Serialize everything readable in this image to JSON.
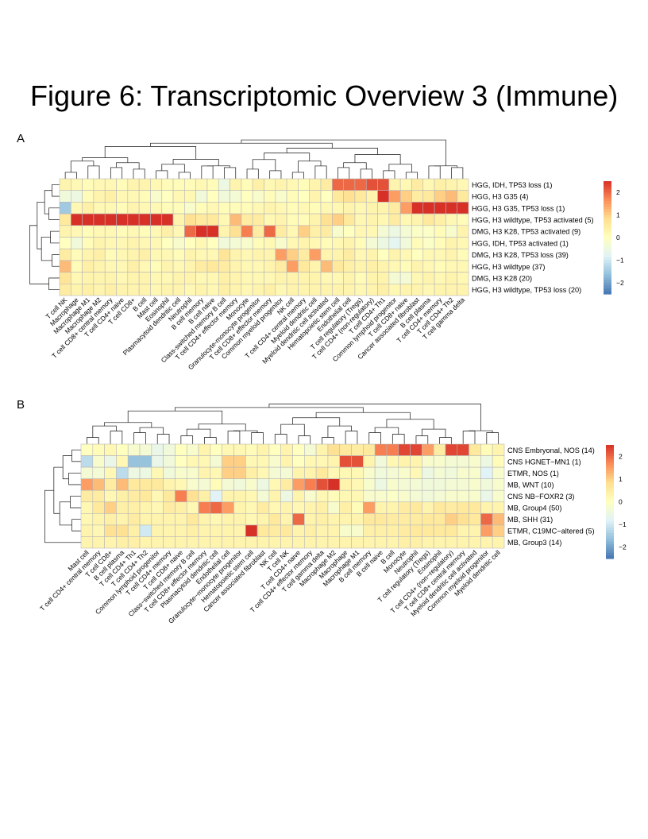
{
  "page": {
    "title": "Figure 6: Transcriptomic Overview 3 (Immune)"
  },
  "legend_colors": [
    "#4575b4",
    "#91bfdb",
    "#e0f3f8",
    "#ffffbf",
    "#fee090",
    "#fc8d59",
    "#d73027"
  ],
  "chart_data": [
    {
      "type": "heatmap",
      "panel": "A",
      "rows": [
        "HGG, IDH, TP53 loss (1)",
        "HGG, H3 G35 (4)",
        "HGG, H3 G35, TP53 loss (1)",
        "HGG, H3 wildtype, TP53 activated (5)",
        "DMG, H3 K28, TP53 activated (9)",
        "HGG, IDH, TP53 activated (1)",
        "DMG, H3 K28, TP53 loss (39)",
        "HGG, H3 wildtype (37)",
        "DMG, H3 K28 (20)",
        "HGG, H3 wildtype, TP53 loss (20)"
      ],
      "columns": [
        "T cell NK",
        "Macrophage",
        "Macrophage M1",
        "Macrophage M2",
        "T cell CD8+ central memory",
        "T cell CD4+ naive",
        "T cell CD8+",
        "B cell",
        "Mast cell",
        "Eosinophil",
        "Plasmacytoid dendritic cell",
        "Neutrophil",
        "B cell memory",
        "B cell naive",
        "Class-switched memory B cell",
        "T cell CD4+ effector memory",
        "Monocyte",
        "Granulocyte-monocyte progenitor",
        "T cell CD8+ effector memory",
        "Common myeloid progenitor",
        "NK cell",
        "T cell CD4+ central memory",
        "Myeloid dendritic cell",
        "Myeloid dendritic cell activated",
        "Hematopoietic stem cell",
        "Endothelial cell",
        "T cell regulatory (Tregs)",
        "T cell CD4+ (non-regulatory)",
        "T cell CD4+ Th1",
        "Common lymphoid progenitor",
        "T cell CD8+ naive",
        "Cancer associated fibroblast",
        "B cell plasma",
        "T cell CD4+ memory",
        "T cell CD4+ Th2",
        "T cell gamma delta"
      ],
      "values": [
        [
          0.3,
          0.2,
          0.1,
          0.2,
          0.2,
          0.1,
          0.3,
          0.3,
          0.2,
          0.1,
          0.1,
          0.1,
          0.2,
          0.1,
          -0.5,
          0.3,
          0.1,
          0.4,
          0.2,
          0.3,
          0.2,
          0.1,
          0.3,
          0.5,
          2.0,
          2.0,
          2.0,
          2.2,
          2.2,
          0.3,
          0.2,
          0.5,
          0.2,
          0.4,
          0.3,
          0.2
        ],
        [
          -0.4,
          -0.5,
          0.1,
          0.3,
          0.4,
          0.2,
          0.2,
          0.1,
          -0.2,
          0.0,
          0.2,
          0.2,
          -0.4,
          0.0,
          -0.4,
          -0.3,
          0.0,
          -0.2,
          0.1,
          -0.2,
          0.1,
          0.0,
          0.3,
          0.0,
          0.6,
          0.8,
          0.6,
          0.3,
          2.5,
          1.5,
          1.0,
          0.5,
          0.6,
          1.0,
          1.2,
          0.6
        ],
        [
          -1.5,
          0.2,
          0.4,
          0.2,
          0.2,
          0.1,
          0.3,
          0.2,
          0.2,
          0.1,
          0.1,
          -0.2,
          0.1,
          0.2,
          0.1,
          0.1,
          0.1,
          0.2,
          0.3,
          0.2,
          0.1,
          0.2,
          0.1,
          0.2,
          0.2,
          0.3,
          0.2,
          0.3,
          0.3,
          0.5,
          1.5,
          2.5,
          2.5,
          2.5,
          2.5,
          2.5
        ],
        [
          0.6,
          2.5,
          2.5,
          2.5,
          2.5,
          2.5,
          2.5,
          2.5,
          2.5,
          2.5,
          0.3,
          0.8,
          0.6,
          0.6,
          0.2,
          1.2,
          0.5,
          0.5,
          0.2,
          0.3,
          0.1,
          0.1,
          0.3,
          0.8,
          1.0,
          0.6,
          0.2,
          0.3,
          0.2,
          0.5,
          0.2,
          0.3,
          0.6,
          0.4,
          0.2,
          0.1
        ],
        [
          0.3,
          0.2,
          0.1,
          0.2,
          0.2,
          0.1,
          0.2,
          0.1,
          0.2,
          0.4,
          0.2,
          2.0,
          2.5,
          2.5,
          0.3,
          0.8,
          1.8,
          0.5,
          2.0,
          0.5,
          0.2,
          1.0,
          0.4,
          0.5,
          -0.2,
          0.0,
          0.2,
          0.2,
          -0.3,
          -0.5,
          -0.3,
          -0.1,
          -0.1,
          0.1,
          -0.2,
          0.3
        ],
        [
          0.0,
          -0.4,
          0.1,
          0.3,
          0.2,
          0.2,
          0.3,
          0.2,
          0.2,
          0.0,
          -0.2,
          0.0,
          0.2,
          0.0,
          -0.4,
          -0.3,
          -0.2,
          0.1,
          0.2,
          -0.2,
          0.2,
          0.3,
          0.2,
          0.1,
          0.2,
          0.3,
          0.1,
          -0.3,
          -0.5,
          -0.7,
          -0.4,
          0.1,
          -0.1,
          0.1,
          0.3,
          0.2
        ],
        [
          0.5,
          0.1,
          0.3,
          0.4,
          0.1,
          0.2,
          0.3,
          0.4,
          0.2,
          0.2,
          0.1,
          0.3,
          0.2,
          0.2,
          0.7,
          0.3,
          0.2,
          0.3,
          0.3,
          1.5,
          1.0,
          0.5,
          1.5,
          0.3,
          0.3,
          0.5,
          0.2,
          0.3,
          0.0,
          0.3,
          0.2,
          0.0,
          0.2,
          0.2,
          0.3,
          0.1
        ],
        [
          1.2,
          0.1,
          0.4,
          0.3,
          0.2,
          0.2,
          0.4,
          0.2,
          0.1,
          0.3,
          0.2,
          0.3,
          0.5,
          0.6,
          0.5,
          0.3,
          0.2,
          0.2,
          0.3,
          0.5,
          1.5,
          0.6,
          0.3,
          1.2,
          0.6,
          0.4,
          0.3,
          0.4,
          0.3,
          0.2,
          0.1,
          0.3,
          0.2,
          0.1,
          0.2,
          0.2
        ],
        [
          0.7,
          0.2,
          0.3,
          0.3,
          0.3,
          0.2,
          0.3,
          0.3,
          0.2,
          0.2,
          0.3,
          0.3,
          0.2,
          0.2,
          0.4,
          0.3,
          0.2,
          0.2,
          0.2,
          0.3,
          0.3,
          0.3,
          0.3,
          0.2,
          0.2,
          0.3,
          0.1,
          0.3,
          0.3,
          -0.3,
          -0.3,
          0.2,
          0.3,
          0.2,
          0.3,
          0.2
        ],
        [
          0.5,
          0.3,
          0.4,
          0.3,
          0.4,
          0.3,
          0.3,
          0.3,
          0.2,
          0.3,
          0.3,
          0.2,
          0.3,
          0.2,
          0.4,
          0.3,
          0.2,
          0.3,
          0.4,
          0.2,
          0.3,
          0.3,
          0.3,
          0.3,
          0.3,
          0.3,
          0.2,
          0.3,
          0.4,
          0.2,
          0.3,
          0.3,
          0.2,
          0.3,
          0.3,
          0.3
        ]
      ],
      "legend_ticks": [
        "2",
        "1",
        "0",
        "−1",
        "−2"
      ],
      "color_range": [
        -2.5,
        2.5
      ]
    },
    {
      "type": "heatmap",
      "panel": "B",
      "rows": [
        "CNS Embryonal, NOS (14)",
        "CNS HGNET−MN1 (1)",
        "ETMR, NOS (1)",
        "MB, WNT (10)",
        "CNS NB−FOXR2 (3)",
        "MB, Group4 (50)",
        "MB, SHH (31)",
        "ETMR, C19MC−altered (5)",
        "MB, Group3 (14)"
      ],
      "columns": [
        "Mast cell",
        "T cell CD4+ central memory",
        "T cell CD8+",
        "B cell plasma",
        "T cell CD4+ Th1",
        "T cell CD4+ Th2",
        "Common lymphoid progenitor",
        "T cell CD4+ memory",
        "T cell CD8+ naive",
        "Class−switched memory B cell",
        "T cell CD8+ effector memory",
        "Plasmacytoid dendritic cell",
        "Endothelial cell",
        "Granulocyte−monocyte progenitor",
        "Hematopoietic stem cell",
        "Cancer associated fibroblast",
        "NK cell",
        "T cell NK",
        "T cell CD4+ naive",
        "T cell CD4+ effector memory",
        "T cell gamma delta",
        "Macrophage M2",
        "Macrophage",
        "Macrophage M1",
        "B cell memory",
        "B cell naive",
        "B cell",
        "Monocyte",
        "Neutrophil",
        "T cell regulatory (Tregs)",
        "Eosinophil",
        "T cell CD4+ (non−regulatory)",
        "T cell CD8+ central memory",
        "Myeloid dendritic cell activated",
        "Common myeloid progenitor",
        "Myeloid dendritic cell"
      ],
      "values": [
        [
          0.0,
          0.1,
          0.2,
          0.0,
          -0.2,
          -0.3,
          -0.6,
          -0.4,
          0.0,
          -0.2,
          0.3,
          0.0,
          0.2,
          0.2,
          0.1,
          0.3,
          0.0,
          0.3,
          0.0,
          -0.3,
          0.3,
          0.8,
          0.6,
          0.5,
          0.6,
          1.8,
          1.8,
          2.3,
          2.3,
          1.5,
          0.5,
          2.3,
          2.3,
          0.6,
          0.1,
          0.3
        ],
        [
          -1.2,
          -0.2,
          -0.6,
          0.2,
          -1.6,
          -1.6,
          -0.6,
          -0.4,
          0.0,
          0.2,
          0.2,
          -0.3,
          1.0,
          1.0,
          0.2,
          0.2,
          -0.2,
          0.3,
          0.0,
          0.2,
          0.2,
          0.3,
          2.2,
          2.2,
          0.3,
          -0.4,
          0.2,
          0.3,
          0.3,
          -0.2,
          -0.2,
          -0.3,
          -0.3,
          -0.2,
          -0.5,
          0.1
        ],
        [
          -0.3,
          -0.3,
          0.2,
          -1.2,
          -0.5,
          -0.5,
          0.2,
          -0.4,
          -0.2,
          -0.2,
          0.3,
          0.2,
          1.0,
          1.0,
          0.4,
          0.2,
          -0.3,
          -0.3,
          0.3,
          0.3,
          0.6,
          0.2,
          0.2,
          0.2,
          -0.2,
          -0.4,
          -0.3,
          -0.2,
          0.2,
          -0.5,
          -0.3,
          -0.4,
          -0.2,
          -0.2,
          -0.8,
          -0.2
        ],
        [
          1.5,
          1.2,
          0.5,
          1.2,
          0.6,
          0.6,
          0.6,
          0.3,
          0.2,
          -0.2,
          -0.3,
          0.1,
          -0.3,
          -0.4,
          -0.2,
          -0.5,
          0.2,
          0.5,
          1.5,
          1.8,
          2.2,
          2.5,
          0.3,
          0.2,
          -0.2,
          -0.5,
          -0.2,
          -0.3,
          -0.3,
          -0.4,
          -0.4,
          -0.3,
          -0.3,
          -0.2,
          -0.4,
          -0.2
        ],
        [
          0.5,
          0.5,
          0.2,
          0.4,
          0.5,
          0.6,
          0.2,
          0.6,
          1.8,
          0.8,
          0.4,
          -0.8,
          0.3,
          0.3,
          0.2,
          -0.3,
          0.3,
          -0.5,
          0.3,
          -0.2,
          0.2,
          0.1,
          0.2,
          0.2,
          -0.2,
          -0.2,
          -0.1,
          -0.2,
          -0.3,
          -0.4,
          -0.3,
          -0.2,
          -0.2,
          -0.2,
          -0.6,
          -0.2
        ],
        [
          0.2,
          0.6,
          1.0,
          0.4,
          0.4,
          0.3,
          0.2,
          0.5,
          0.4,
          0.2,
          1.8,
          2.0,
          1.5,
          0.3,
          0.2,
          0.5,
          0.2,
          0.3,
          0.2,
          0.3,
          0.4,
          -0.2,
          0.4,
          0.1,
          1.5,
          0.3,
          0.3,
          0.5,
          0.6,
          0.3,
          0.6,
          0.5,
          0.6,
          0.6,
          0.3,
          0.3
        ],
        [
          0.2,
          0.3,
          0.4,
          0.3,
          0.5,
          0.3,
          0.3,
          0.3,
          0.3,
          0.6,
          0.3,
          0.2,
          0.3,
          0.3,
          0.2,
          0.3,
          0.6,
          0.3,
          2.0,
          0.3,
          0.4,
          0.3,
          0.3,
          0.3,
          0.6,
          0.6,
          0.5,
          0.5,
          0.5,
          0.6,
          0.6,
          1.0,
          0.8,
          0.6,
          2.0,
          1.2
        ],
        [
          0.3,
          0.2,
          0.8,
          0.8,
          0.4,
          -1.0,
          0.3,
          0.3,
          0.3,
          0.4,
          0.3,
          0.3,
          0.3,
          0.3,
          2.5,
          0.6,
          0.5,
          0.6,
          0.3,
          0.4,
          0.3,
          0.3,
          -0.2,
          -0.2,
          0.4,
          0.4,
          0.4,
          0.5,
          0.6,
          0.6,
          0.6,
          0.6,
          0.3,
          0.3,
          1.5,
          1.0
        ],
        [
          0.3,
          0.3,
          0.3,
          0.4,
          0.4,
          0.3,
          0.3,
          0.3,
          0.3,
          0.3,
          0.3,
          0.3,
          0.3,
          0.3,
          0.3,
          0.3,
          0.3,
          0.3,
          0.3,
          0.3,
          0.3,
          0.3,
          0.3,
          0.3,
          0.3,
          0.3,
          0.3,
          0.4,
          0.4,
          0.3,
          0.3,
          0.3,
          0.3,
          0.3,
          0.3,
          0.3
        ]
      ],
      "legend_ticks": [
        "2",
        "1",
        "0",
        "−1",
        "−2"
      ],
      "color_range": [
        -2.5,
        2.5
      ]
    }
  ]
}
